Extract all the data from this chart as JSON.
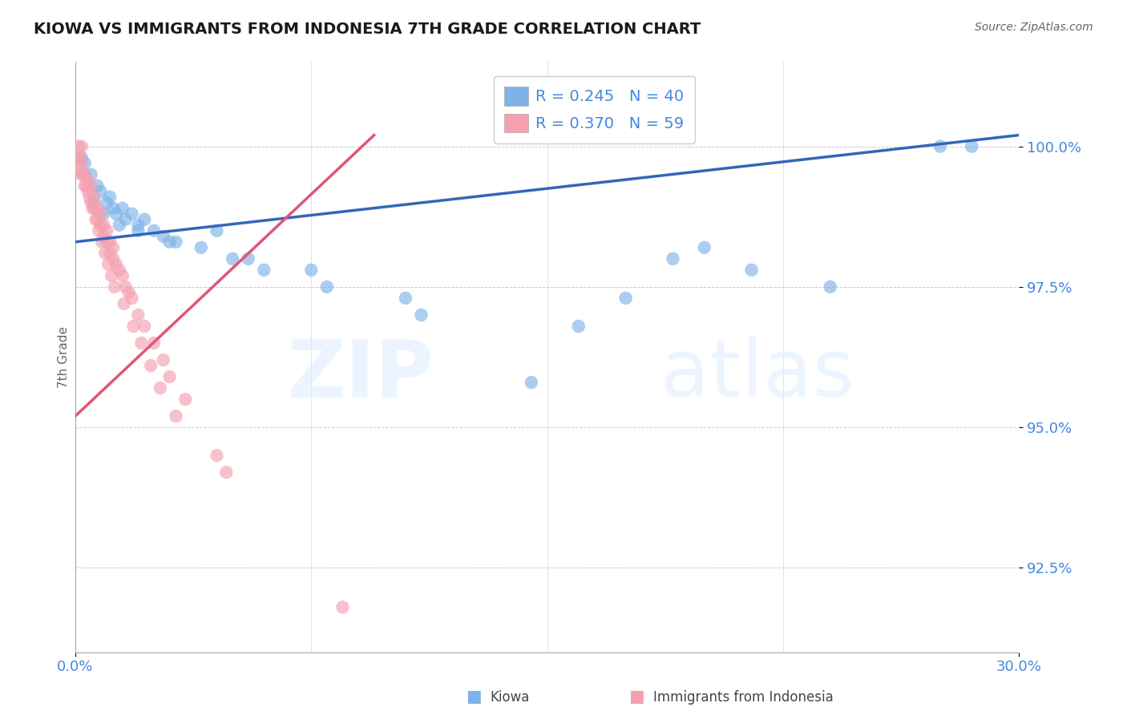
{
  "title": "KIOWA VS IMMIGRANTS FROM INDONESIA 7TH GRADE CORRELATION CHART",
  "source_text": "Source: ZipAtlas.com",
  "ylabel": "7th Grade",
  "watermark_zip": "ZIP",
  "watermark_atlas": "atlas",
  "xlim": [
    0.0,
    30.0
  ],
  "ylim": [
    91.0,
    101.5
  ],
  "yticks": [
    92.5,
    95.0,
    97.5,
    100.0
  ],
  "ytick_labels": [
    "92.5%",
    "95.0%",
    "97.5%",
    "100.0%"
  ],
  "legend_blue_label": "R = 0.245   N = 40",
  "legend_pink_label": "R = 0.370   N = 59",
  "bottom_legend_blue": "Kiowa",
  "bottom_legend_pink": "Immigrants from Indonesia",
  "blue_color": "#7EB3E8",
  "pink_color": "#F4A0B0",
  "blue_line_color": "#3366BB",
  "pink_line_color": "#E05575",
  "title_color": "#1A1A1A",
  "axis_tick_color": "#4488DD",
  "ylabel_color": "#666666",
  "legend_text_color": "#4488DD",
  "bg_color": "#FFFFFF",
  "grid_color": "#CCCCCC",
  "blue_scatter_x": [
    0.2,
    0.3,
    0.5,
    0.7,
    0.8,
    1.0,
    1.1,
    1.2,
    1.3,
    1.5,
    1.6,
    1.8,
    2.0,
    2.2,
    2.5,
    2.8,
    3.2,
    4.5,
    5.5,
    7.5,
    10.5,
    14.5,
    20.0,
    27.5,
    0.6,
    0.9,
    1.4,
    2.0,
    3.0,
    4.0,
    5.0,
    6.0,
    8.0,
    11.0,
    16.0,
    17.5,
    19.0,
    21.5,
    24.0,
    28.5
  ],
  "blue_scatter_y": [
    99.8,
    99.7,
    99.5,
    99.3,
    99.2,
    99.0,
    99.1,
    98.9,
    98.8,
    98.9,
    98.7,
    98.8,
    98.6,
    98.7,
    98.5,
    98.4,
    98.3,
    98.5,
    98.0,
    97.8,
    97.3,
    95.8,
    98.2,
    100.0,
    99.0,
    98.8,
    98.6,
    98.5,
    98.3,
    98.2,
    98.0,
    97.8,
    97.5,
    97.0,
    96.8,
    97.3,
    98.0,
    97.8,
    97.5,
    100.0
  ],
  "pink_scatter_x": [
    0.1,
    0.1,
    0.1,
    0.2,
    0.2,
    0.2,
    0.3,
    0.3,
    0.4,
    0.4,
    0.5,
    0.5,
    0.6,
    0.6,
    0.7,
    0.7,
    0.8,
    0.8,
    0.9,
    0.9,
    1.0,
    1.0,
    1.1,
    1.1,
    1.2,
    1.2,
    1.3,
    1.4,
    1.5,
    1.6,
    1.7,
    1.8,
    2.0,
    2.2,
    2.5,
    2.8,
    3.0,
    3.5,
    0.15,
    0.25,
    0.35,
    0.45,
    0.55,
    0.65,
    0.75,
    0.85,
    0.95,
    1.05,
    1.15,
    1.25,
    1.55,
    1.85,
    2.1,
    2.4,
    2.7,
    3.2,
    4.5,
    4.8,
    8.5
  ],
  "pink_scatter_y": [
    100.0,
    99.8,
    99.6,
    100.0,
    99.7,
    99.5,
    99.5,
    99.3,
    99.4,
    99.2,
    99.3,
    99.0,
    99.1,
    98.9,
    98.9,
    98.7,
    98.8,
    98.6,
    98.6,
    98.4,
    98.5,
    98.3,
    98.3,
    98.1,
    98.2,
    98.0,
    97.9,
    97.8,
    97.7,
    97.5,
    97.4,
    97.3,
    97.0,
    96.8,
    96.5,
    96.2,
    95.9,
    95.5,
    99.8,
    99.5,
    99.3,
    99.1,
    98.9,
    98.7,
    98.5,
    98.3,
    98.1,
    97.9,
    97.7,
    97.5,
    97.2,
    96.8,
    96.5,
    96.1,
    95.7,
    95.2,
    94.5,
    94.2,
    91.8
  ],
  "blue_trend_x": [
    0.0,
    30.0
  ],
  "blue_trend_y": [
    98.3,
    100.2
  ],
  "pink_trend_x": [
    0.0,
    9.5
  ],
  "pink_trend_y": [
    95.2,
    100.2
  ]
}
